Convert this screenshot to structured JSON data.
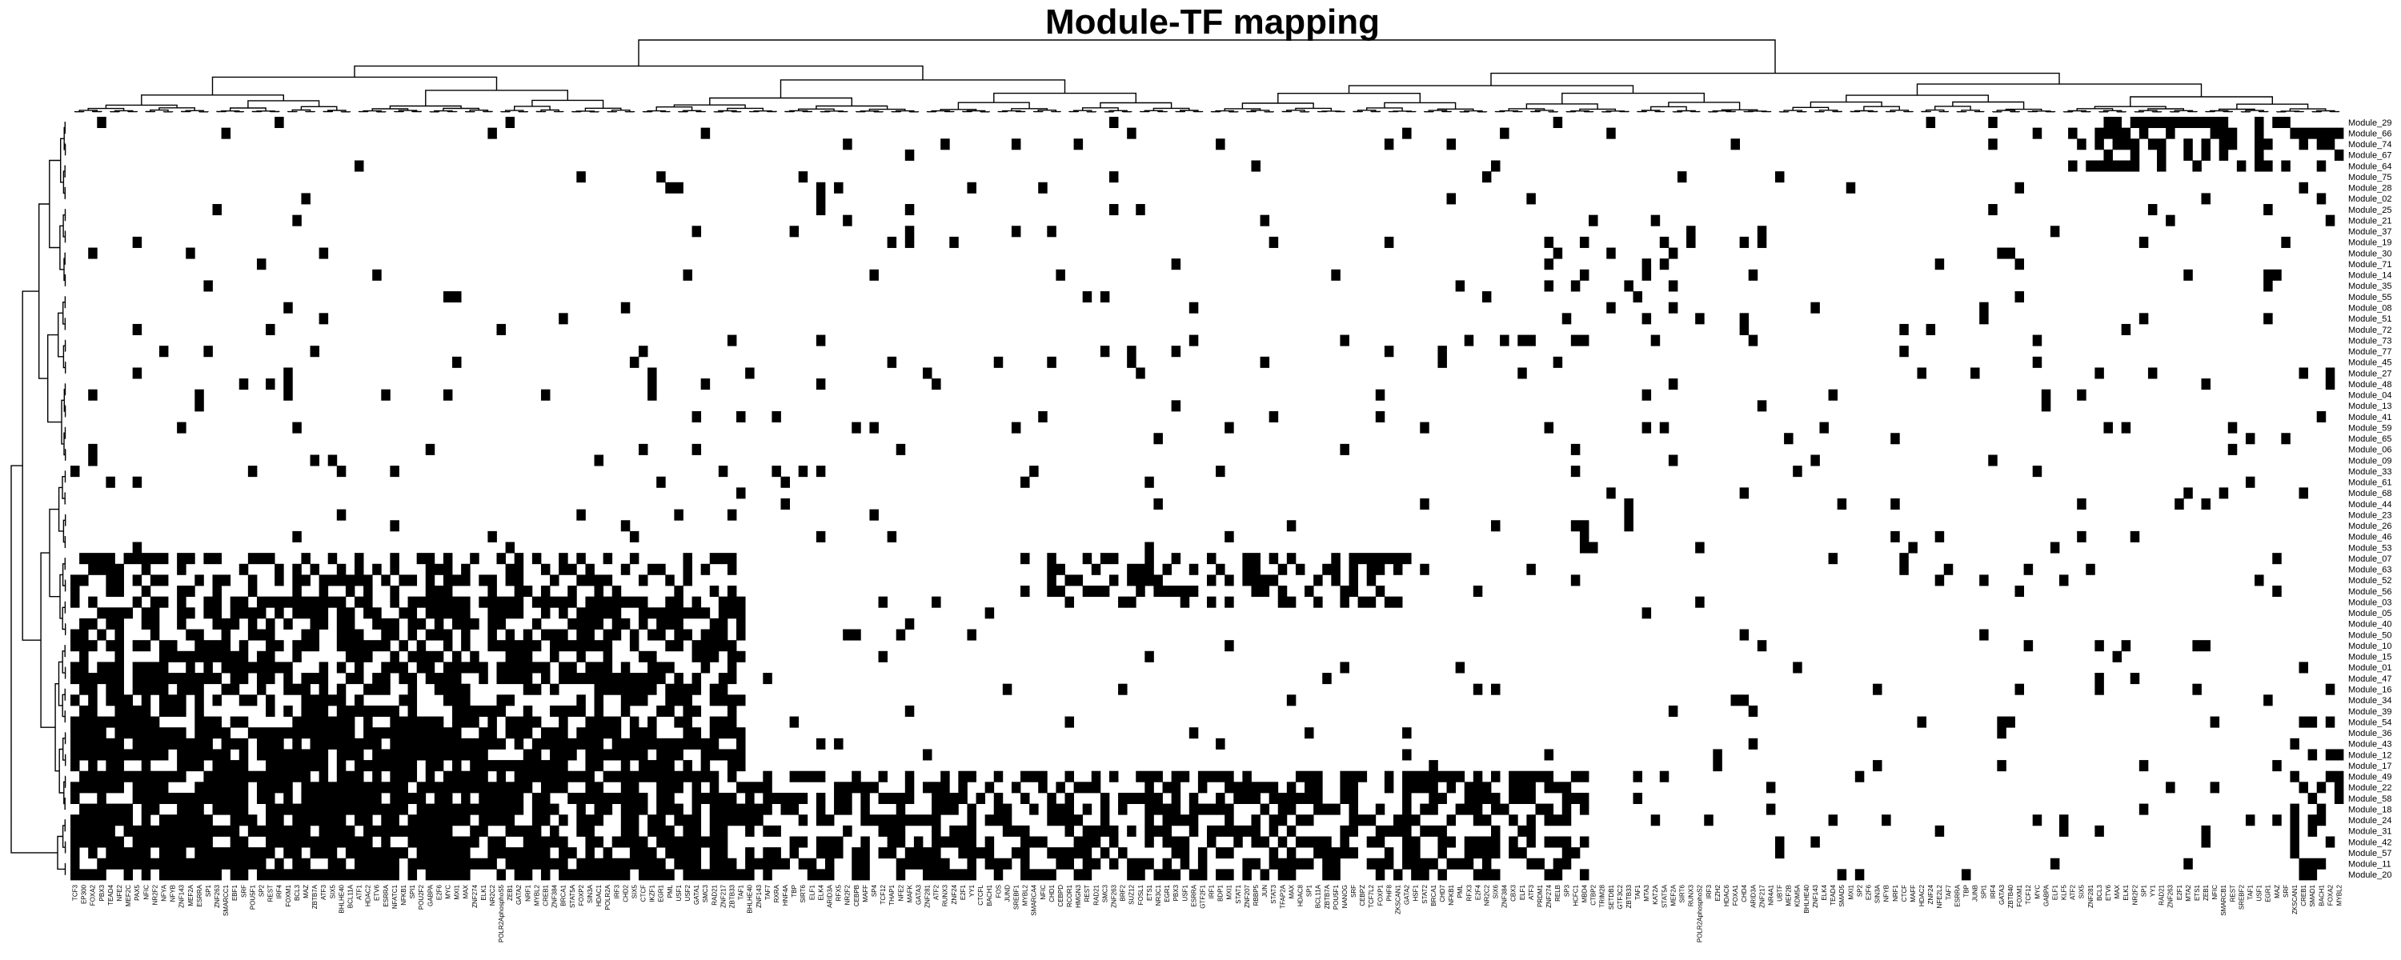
{
  "chart_data": {
    "type": "heatmap",
    "title": "Module-TF mapping",
    "colors": {
      "present": "#000000",
      "absent": "#ffffff"
    },
    "rows": [
      "Module_29",
      "Module_66",
      "Module_74",
      "Module_67",
      "Module_64",
      "Module_75",
      "Module_28",
      "Module_02",
      "Module_25",
      "Module_21",
      "Module_37",
      "Module_19",
      "Module_30",
      "Module_71",
      "Module_14",
      "Module_35",
      "Module_55",
      "Module_08",
      "Module_51",
      "Module_72",
      "Module_73",
      "Module_77",
      "Module_45",
      "Module_27",
      "Module_48",
      "Module_04",
      "Module_13",
      "Module_41",
      "Module_59",
      "Module_65",
      "Module_06",
      "Module_09",
      "Module_33",
      "Module_61",
      "Module_68",
      "Module_44",
      "Module_23",
      "Module_26",
      "Module_46",
      "Module_53",
      "Module_07",
      "Module_63",
      "Module_52",
      "Module_56",
      "Module_03",
      "Module_05",
      "Module_40",
      "Module_50",
      "Module_10",
      "Module_15",
      "Module_01",
      "Module_47",
      "Module_16",
      "Module_34",
      "Module_39",
      "Module_54",
      "Module_36",
      "Module_43",
      "Module_12",
      "Module_17",
      "Module_49",
      "Module_22",
      "Module_58",
      "Module_18",
      "Module_24",
      "Module_31",
      "Module_42",
      "Module_57",
      "Module_11",
      "Module_20"
    ],
    "columns": [
      "TCF3",
      "EP300",
      "FOXA2",
      "PBX3",
      "TEAD4",
      "NFE2",
      "MEF2C",
      "PAX5",
      "NFIC",
      "NR2F2",
      "NFYA",
      "NFYB",
      "ZNF143",
      "MEF2A",
      "ESRRA",
      "SP1",
      "ZNF263",
      "SMARCC1",
      "EBF1",
      "SRF",
      "POU5F1",
      "SP2",
      "REST",
      "IRF4",
      "FOXM1",
      "BCL3",
      "MAZ",
      "ZBTB7A",
      "ATF3",
      "SIX5",
      "BHLHE40",
      "BCL11A",
      "ATF1",
      "HDAC2",
      "ETV6",
      "ESRRA",
      "NFATC1",
      "NFKB1",
      "SPI1",
      "POU2F2",
      "GABPA",
      "E2F6",
      "MYC",
      "MXI1",
      "MAX",
      "ZNF274",
      "ELK1",
      "NR2C2",
      "POLR2AphosphoS5",
      "ZEB1",
      "GATA2",
      "NRF1",
      "MYBL2",
      "CREB1",
      "ZNF384",
      "BRCA1",
      "STAT5A",
      "FOXP2",
      "SIN3A",
      "HDAC1",
      "POLR2A",
      "IRF3",
      "CHD2",
      "SIX5",
      "CTCF",
      "IKZF1",
      "EGR1",
      "PML",
      "USF1",
      "USF2",
      "GATA1",
      "SMC3",
      "RAD21",
      "ZNF217",
      "ZBTB33",
      "TAF1",
      "BHLHE40",
      "ZNF143",
      "TAF7",
      "RXRA",
      "HNF4A",
      "TBP",
      "SIRT6",
      "ELF1",
      "ELK4",
      "ARID3A",
      "RFX5",
      "NR2F2",
      "CEBPB",
      "MAFF",
      "SP4",
      "TCF12",
      "THAP1",
      "NFE2",
      "MAFK",
      "GATA3",
      "ZNF281",
      "ATF2",
      "RUNX3",
      "ZNF24",
      "E2F1",
      "YY1",
      "CTCFL",
      "BACH1",
      "FOS",
      "JUND",
      "SREBF1",
      "MYBL2",
      "SMARCA4",
      "NFIC",
      "CHD1",
      "CEBPD",
      "RCOR1",
      "HMGN3",
      "REST",
      "RAD21",
      "SMC3",
      "ZNF263",
      "BRF2",
      "SUZ12",
      "FOSL1",
      "ETS1",
      "NR3C1",
      "EGR1",
      "PBX3",
      "USF1",
      "ESRRA",
      "GTF2F1",
      "IRF1",
      "BDP1",
      "MXI1",
      "STAT1",
      "ZNF207",
      "RBBP5",
      "JUN",
      "STAT3",
      "TFAP2A",
      "MAX",
      "HDAC8",
      "SP1",
      "BCL11A",
      "ZBTB7A",
      "POU5F1",
      "NANOG",
      "SRF",
      "CEBPZ",
      "TCF7L2",
      "FOXP1",
      "PHF8",
      "ZKSCAN1",
      "GATA2",
      "HSF1",
      "STAT2",
      "BRCA1",
      "CHD7",
      "NFKB1",
      "PML",
      "RFX3",
      "E2F4",
      "NR2C2",
      "SIX6",
      "ZNF384",
      "CBX3",
      "ELF1",
      "ATF3",
      "PRDM1",
      "ZNF274",
      "RELB",
      "SP3",
      "HCFC1",
      "MBD4",
      "CTBP2",
      "TRIM28",
      "SETDB1",
      "GTF3C2",
      "ZBTB33",
      "TAF1",
      "MTA3",
      "KAT2A",
      "STAT5A",
      "MEF2A",
      "SIRT6",
      "RUNX3",
      "POLR2AphosphoS2",
      "IRF3",
      "EZH2",
      "HDAC6",
      "FOXA1",
      "CHD4",
      "ARID3A",
      "ZNF217",
      "NR4A1",
      "UBTF",
      "MEF2B",
      "KDM5A",
      "BHLHE40",
      "ZNF143",
      "ELK4",
      "TEAD4",
      "SMAD5",
      "MXI1",
      "SP2",
      "E2F6",
      "SIN3A",
      "NFYB",
      "NRF1",
      "CTCF",
      "MAFF",
      "HDAC2",
      "ZNF24",
      "NFE2L2",
      "TAF7",
      "ESRRA",
      "TBP",
      "JUNB",
      "SPI1",
      "IRF4",
      "GATA3",
      "ZBTB40",
      "FOXM1",
      "TCF12",
      "MYC",
      "GABPA",
      "ELF1",
      "KLF5",
      "ATF2",
      "SIX5",
      "ZNF281",
      "BCL3",
      "ETV6",
      "MAX",
      "ELK1",
      "NR2F2",
      "SP1",
      "YY1",
      "RAD21",
      "ZNF263",
      "E2F1",
      "MTA2",
      "ETS1",
      "ZEB1",
      "NFIC",
      "SMARCB1",
      "REST",
      "SREBF2",
      "TAF1",
      "USF1",
      "EGR1",
      "MAZ",
      "SRF",
      "ZKSCAN1",
      "CREB1",
      "SMAD1",
      "BACH1",
      "FOXA2",
      "MYBL2"
    ],
    "ylim": [
      0,
      1
    ]
  }
}
